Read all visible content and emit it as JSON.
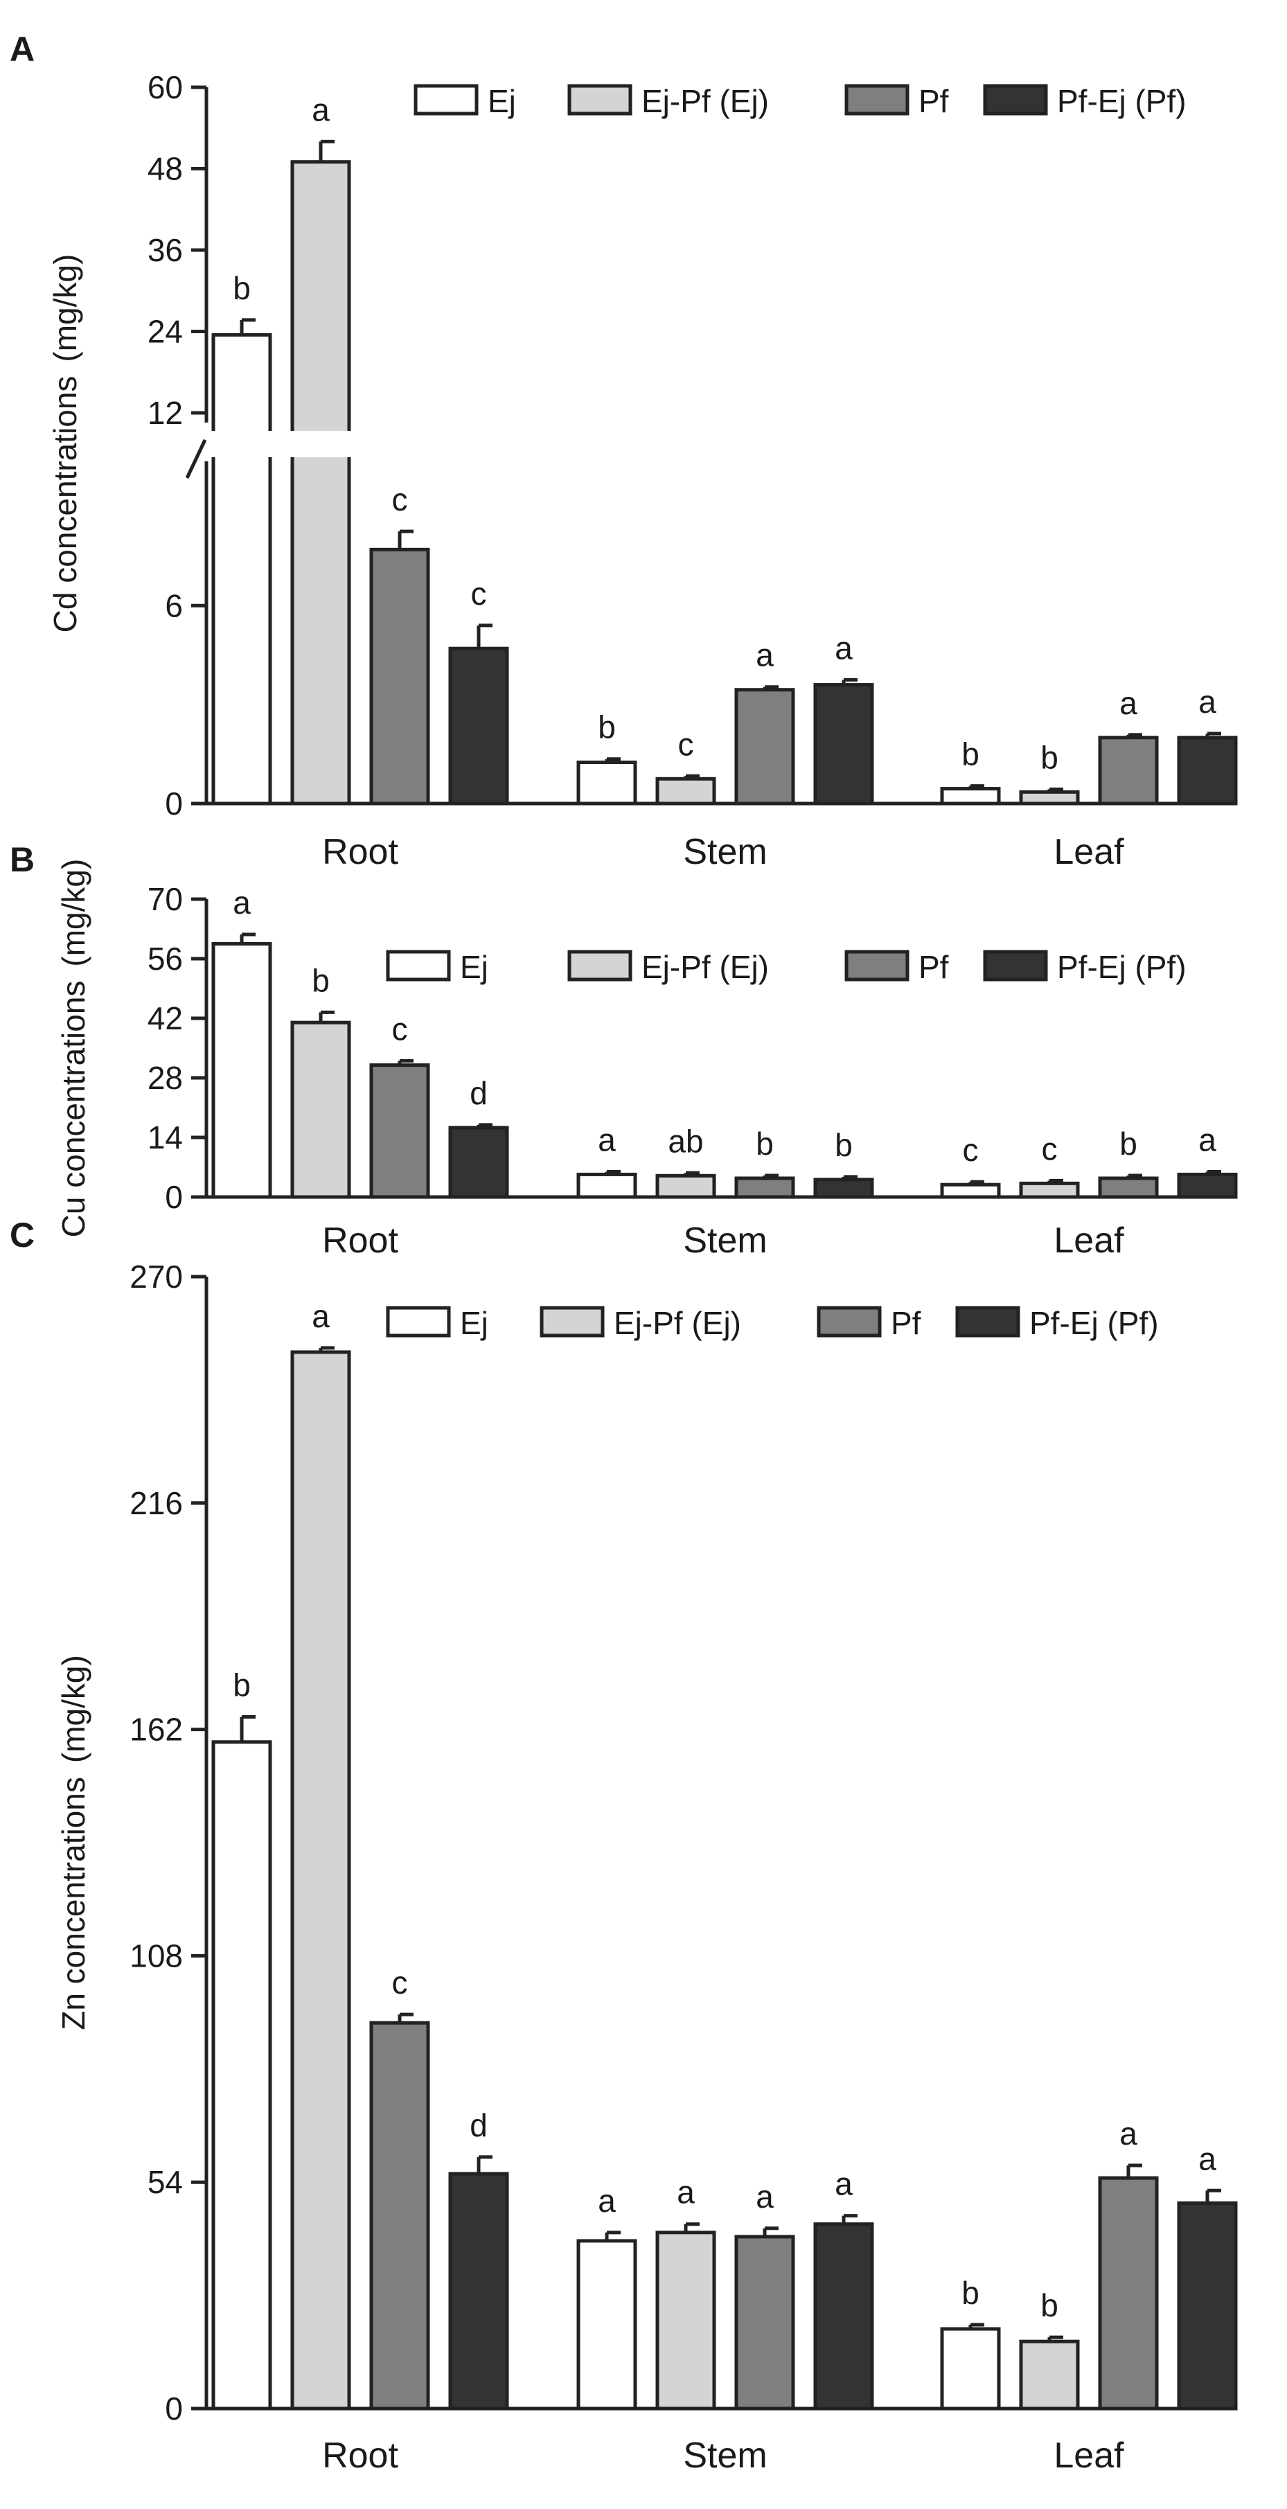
{
  "chart_data": [
    {
      "type": "bar",
      "panel": "A",
      "ylabel": "Cd concentrations",
      "yunit": "(mg/kg)",
      "categories": [
        "Root",
        "Stem",
        "Leaf"
      ],
      "axis_break": true,
      "lower_ylim": [
        0,
        10.5
      ],
      "lower_ticks": [
        0,
        6
      ],
      "upper_ylim": [
        10.5,
        60
      ],
      "upper_ticks": [
        12,
        24,
        36,
        48,
        60
      ],
      "series": [
        {
          "name": "Ej",
          "color": "#ffffff",
          "values": [
            23.5,
            1.25,
            0.45
          ],
          "errors": [
            2.2,
            0.1,
            0.05
          ],
          "letters": [
            "b",
            "b",
            "b"
          ]
        },
        {
          "name": "Ej-Pf (Ej)",
          "color": "#d4d4d4",
          "values": [
            49.0,
            0.75,
            0.35
          ],
          "errors": [
            3.0,
            0.08,
            0.05
          ],
          "letters": [
            "a",
            "c",
            "b"
          ]
        },
        {
          "name": "Pf",
          "color": "#7f7f7f",
          "values": [
            7.7,
            3.45,
            2.0
          ],
          "errors": [
            0.55,
            0.05,
            0.08
          ],
          "letters": [
            "c",
            "a",
            "a"
          ]
        },
        {
          "name": "Pf-Ej (Pf)",
          "color": "#333333",
          "values": [
            4.7,
            3.6,
            2.0
          ],
          "errors": [
            0.7,
            0.15,
            0.12
          ],
          "letters": [
            "c",
            "a",
            "a"
          ]
        }
      ]
    },
    {
      "type": "bar",
      "panel": "B",
      "ylabel": "Cu concentrations",
      "yunit": "(mg/kg)",
      "categories": [
        "Root",
        "Stem",
        "Leaf"
      ],
      "ylim": [
        0,
        70
      ],
      "yticks": [
        0,
        14,
        28,
        42,
        56,
        70
      ],
      "series": [
        {
          "name": "Ej",
          "color": "#ffffff",
          "values": [
            59.5,
            5.3,
            2.9
          ],
          "errors": [
            2.2,
            0.2,
            0.15
          ],
          "letters": [
            "a",
            "a",
            "c"
          ]
        },
        {
          "name": "Ej-Pf (Ej)",
          "color": "#d4d4d4",
          "values": [
            41.0,
            5.0,
            3.2
          ],
          "errors": [
            2.4,
            0.15,
            0.2
          ],
          "letters": [
            "b",
            "ab",
            "c"
          ]
        },
        {
          "name": "Pf",
          "color": "#7f7f7f",
          "values": [
            31.0,
            4.4,
            4.4
          ],
          "errors": [
            1.0,
            0.5,
            0.2
          ],
          "letters": [
            "c",
            "b",
            "b"
          ]
        },
        {
          "name": "Pf-Ej (Pf)",
          "color": "#333333",
          "values": [
            16.3,
            4.1,
            5.3
          ],
          "errors": [
            0.5,
            0.4,
            0.4
          ],
          "letters": [
            "d",
            "b",
            "a"
          ]
        }
      ]
    },
    {
      "type": "bar",
      "panel": "C",
      "ylabel": "Zn concentrations",
      "yunit": "(mg/kg)",
      "categories": [
        "Root",
        "Stem",
        "Leaf"
      ],
      "ylim": [
        0,
        270
      ],
      "yticks": [
        0,
        54,
        108,
        162,
        216,
        270
      ],
      "series": [
        {
          "name": "Ej",
          "color": "#ffffff",
          "values": [
            159,
            40,
            19
          ],
          "errors": [
            6,
            2,
            1
          ],
          "letters": [
            "b",
            "a",
            "b"
          ]
        },
        {
          "name": "Ej-Pf (Ej)",
          "color": "#d4d4d4",
          "values": [
            252,
            42,
            16
          ],
          "errors": [
            1,
            2,
            1
          ],
          "letters": [
            "a",
            "a",
            "b"
          ]
        },
        {
          "name": "Pf",
          "color": "#7f7f7f",
          "values": [
            92,
            41,
            55
          ],
          "errors": [
            2,
            2,
            3
          ],
          "letters": [
            "c",
            "a",
            "a"
          ]
        },
        {
          "name": "Pf-Ej (Pf)",
          "color": "#333333",
          "values": [
            56,
            44,
            49
          ],
          "errors": [
            4,
            2,
            3
          ],
          "letters": [
            "d",
            "a",
            "a"
          ]
        }
      ]
    }
  ]
}
